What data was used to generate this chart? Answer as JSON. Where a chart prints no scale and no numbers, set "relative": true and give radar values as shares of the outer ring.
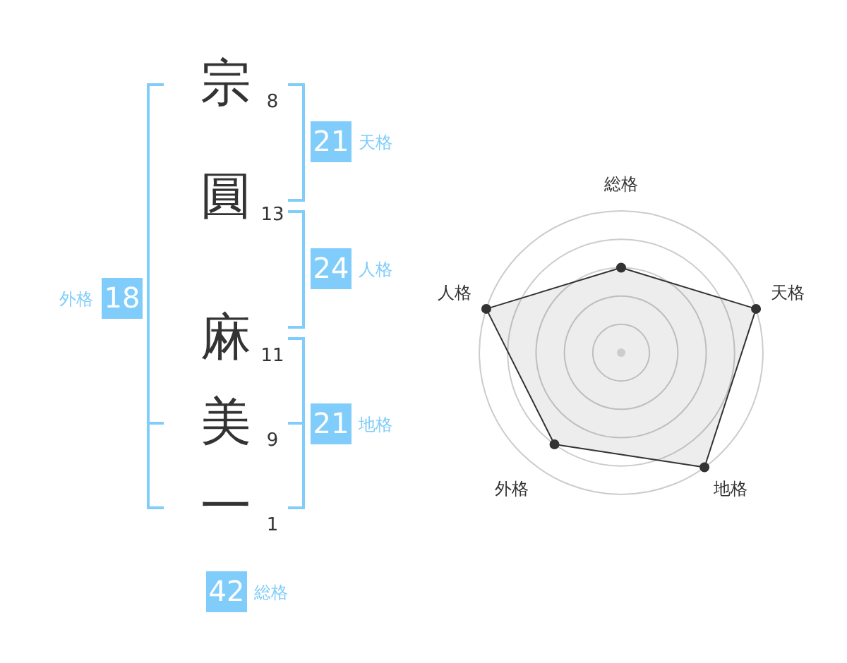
{
  "chart_data": [
    {
      "type": "other",
      "categories": [
        "宗",
        "圓",
        "麻",
        "美",
        "一"
      ],
      "values": [
        8,
        13,
        11,
        9,
        1
      ],
      "data_labels": true
    },
    {
      "type": "other",
      "categories": [
        "天格",
        "人格",
        "地格",
        "外格",
        "総格"
      ],
      "values": [
        21,
        24,
        21,
        18,
        42
      ],
      "color": "#80cdfb",
      "data_labels": true
    },
    {
      "type": "radar",
      "categories": [
        "総格",
        "天格",
        "地格",
        "外格",
        "人格"
      ],
      "series": [
        {
          "color": "#333333",
          "values": [
            0.6,
            1,
            1,
            0.8,
            1
          ]
        }
      ],
      "relative": true,
      "grid": true,
      "marker": "circle"
    }
  ]
}
